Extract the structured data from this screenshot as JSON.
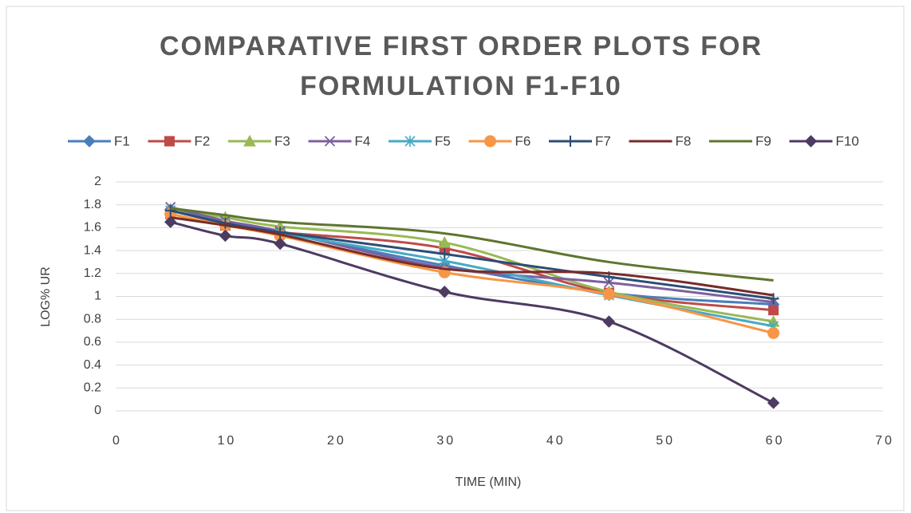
{
  "chart_data": {
    "type": "line",
    "title": [
      "COMPARATIVE FIRST ORDER PLOTS FOR",
      "FORMULATION F1-F10"
    ],
    "x_label": "TIME (MIN)",
    "y_label": "LOG% UR",
    "x": [
      5,
      10,
      15,
      30,
      45,
      60
    ],
    "xlim": [
      0,
      70
    ],
    "xticks": [
      0,
      10,
      20,
      30,
      40,
      50,
      60,
      70
    ],
    "ylim": [
      0,
      2
    ],
    "yticks": [
      0,
      0.2,
      0.4,
      0.6,
      0.8,
      1,
      1.2,
      1.4,
      1.6,
      1.8,
      2
    ],
    "grid": true,
    "legend": "top",
    "smooth": true,
    "series": [
      {
        "name": "F1",
        "color": "#4a7ebb",
        "marker": "diamond",
        "values": [
          1.76,
          1.65,
          1.56,
          1.27,
          1.03,
          0.93
        ]
      },
      {
        "name": "F2",
        "color": "#be4b48",
        "marker": "square",
        "values": [
          1.72,
          1.62,
          1.56,
          1.42,
          1.03,
          0.88
        ]
      },
      {
        "name": "F3",
        "color": "#98b954",
        "marker": "triangle",
        "values": [
          1.76,
          1.69,
          1.61,
          1.47,
          1.04,
          0.78
        ]
      },
      {
        "name": "F4",
        "color": "#7d60a0",
        "marker": "x",
        "values": [
          1.78,
          1.66,
          1.57,
          1.25,
          1.12,
          0.95
        ]
      },
      {
        "name": "F5",
        "color": "#46aac5",
        "marker": "asterisk",
        "values": [
          1.75,
          1.64,
          1.55,
          1.31,
          1.01,
          0.74
        ]
      },
      {
        "name": "F6",
        "color": "#f79646",
        "marker": "circle",
        "values": [
          1.72,
          1.62,
          1.53,
          1.21,
          1.02,
          0.68
        ]
      },
      {
        "name": "F7",
        "color": "#2c4d75",
        "marker": "plus",
        "values": [
          1.75,
          1.64,
          1.56,
          1.37,
          1.17,
          0.98
        ]
      },
      {
        "name": "F8",
        "color": "#772c2a",
        "marker": "none",
        "values": [
          1.69,
          1.62,
          1.54,
          1.24,
          1.2,
          1.01
        ]
      },
      {
        "name": "F9",
        "color": "#5f7530",
        "marker": "none",
        "values": [
          1.77,
          1.71,
          1.65,
          1.55,
          1.3,
          1.14
        ]
      },
      {
        "name": "F10",
        "color": "#4d3b62",
        "marker": "diamond",
        "values": [
          1.65,
          1.53,
          1.46,
          1.04,
          0.78,
          0.07
        ]
      }
    ]
  }
}
